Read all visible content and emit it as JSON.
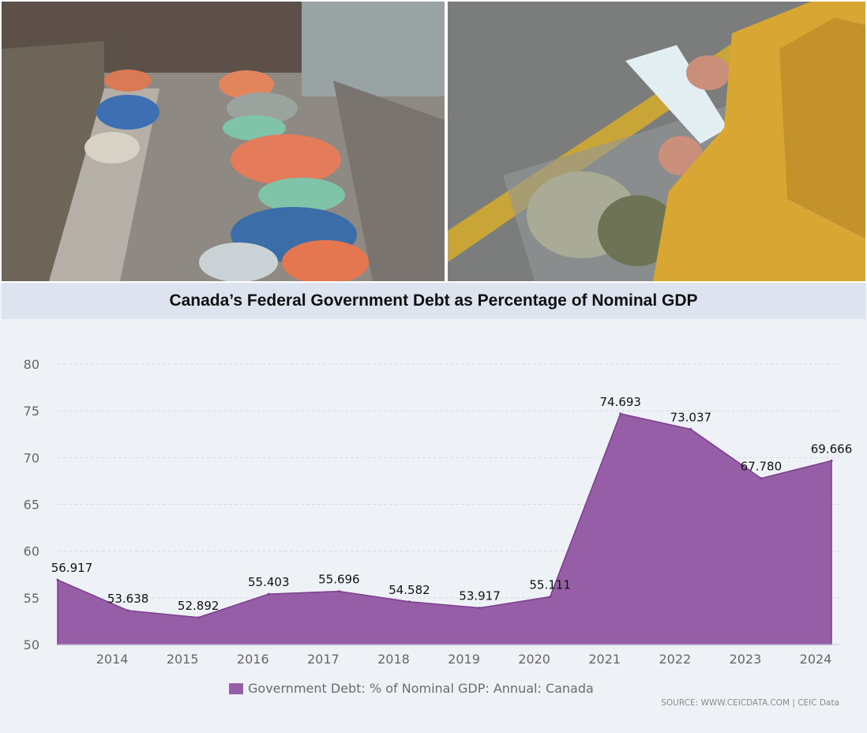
{
  "photos": {
    "left": "homeless-encampment-tents-photo",
    "right": "grocery-cart-receipt-photo"
  },
  "colors": {
    "area": "#965ea6",
    "grid": "#d6dbe3",
    "panel": "#eef2f7",
    "title_bar": "#dde4ef"
  },
  "chart_data": {
    "type": "area",
    "title": "Canada’s Federal Government Debt as Percentage of Nominal GDP",
    "x": [
      "2013",
      "2014",
      "2015",
      "2016",
      "2017",
      "2018",
      "2019",
      "2020",
      "2021",
      "2022",
      "2023",
      "2024"
    ],
    "x_tick_labels": [
      "2014",
      "2015",
      "2016",
      "2017",
      "2018",
      "2019",
      "2020",
      "2021",
      "2022",
      "2023",
      "2024"
    ],
    "y_tick_labels": [
      "50",
      "55",
      "60",
      "65",
      "70",
      "75",
      "80"
    ],
    "ylim": [
      50,
      80
    ],
    "grid": true,
    "series": [
      {
        "name": "Government Debt: % of Nominal GDP: Annual: Canada",
        "values": [
          56.917,
          53.638,
          52.892,
          55.403,
          55.696,
          54.582,
          53.917,
          55.111,
          74.693,
          73.037,
          67.78,
          69.666
        ],
        "labels": [
          "56.917",
          "53.638",
          "52.892",
          "55.403",
          "55.696",
          "54.582",
          "53.917",
          "55.111",
          "74.693",
          "73.037",
          "67.780",
          "69.666"
        ]
      }
    ],
    "legend": "bottom",
    "source": "SOURCE: WWW.CEICDATA.COM | CEIC Data"
  }
}
